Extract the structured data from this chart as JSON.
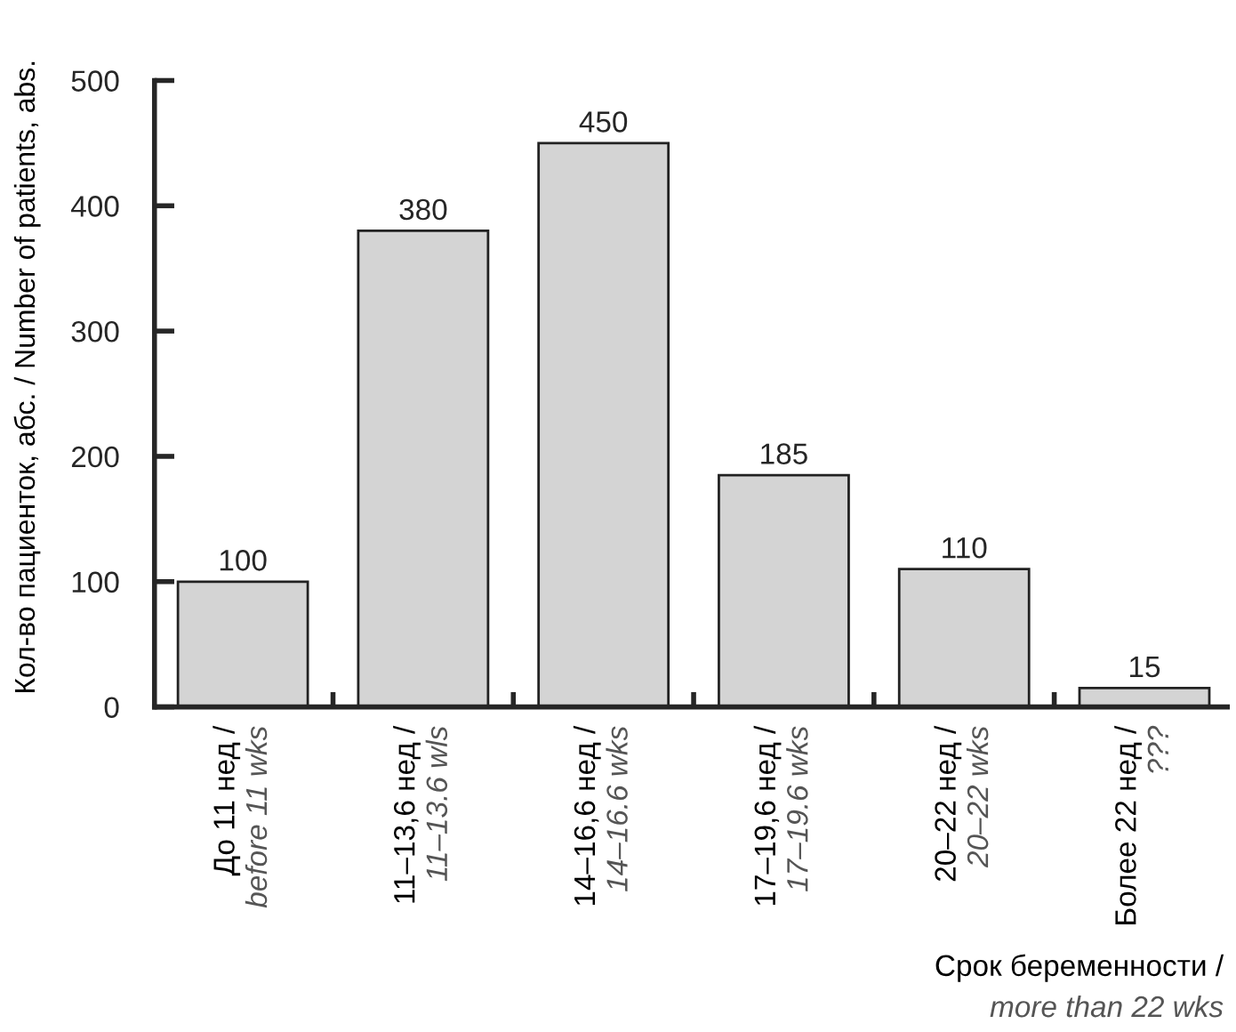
{
  "chart_data": {
    "type": "bar",
    "ylabel": "Кол-во пациенток, абс. / Number of patients, abs.",
    "xlabel": "Срок беременности /\nmore than 22 wks",
    "categories": [
      "До 11 нед /\nbefore 11 wks",
      "11–13,6 нед /\n11–13.6 wls",
      "14–16,6 нед /\n14–16.6 wks",
      "17–19,6 нед /\n17–19.6 wks",
      "20–22 нед /\n20–22 wks",
      "Более 22 нед /\n???"
    ],
    "values": [
      100,
      380,
      450,
      185,
      110,
      15
    ],
    "color": "#d4d4d4",
    "ylim": [
      0,
      500
    ],
    "yticks": [
      0,
      100,
      200,
      300,
      400,
      500
    ],
    "data_labels": true,
    "grid": false,
    "legend": false
  }
}
